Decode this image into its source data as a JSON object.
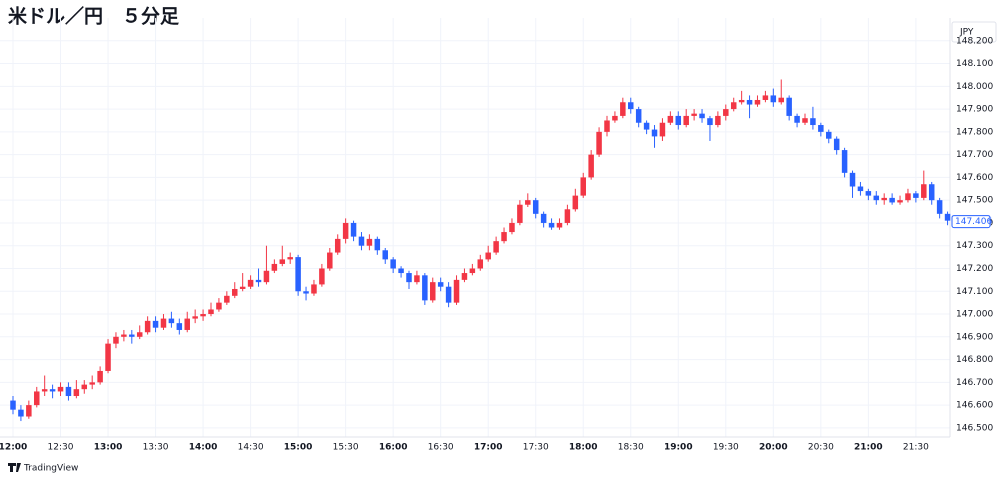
{
  "chart_data": {
    "type": "candlestick",
    "title": "米ドル／円　５分足",
    "currency": "JPY",
    "brand": "TradingView",
    "up_color": "#f23645",
    "down_color": "#2962ff",
    "grid": true,
    "last_price": {
      "value": 147.406,
      "label": "147.406"
    },
    "ylim": [
      146.46,
      148.3
    ],
    "yticks": [
      {
        "value": 146.5,
        "label": "146.500"
      },
      {
        "value": 146.6,
        "label": "146.600"
      },
      {
        "value": 146.7,
        "label": "146.700"
      },
      {
        "value": 146.8,
        "label": "146.800"
      },
      {
        "value": 146.9,
        "label": "146.900"
      },
      {
        "value": 147.0,
        "label": "147.000"
      },
      {
        "value": 147.1,
        "label": "147.100"
      },
      {
        "value": 147.2,
        "label": "147.200"
      },
      {
        "value": 147.3,
        "label": "147.300"
      },
      {
        "value": 147.4,
        "label": "147.400"
      },
      {
        "value": 147.5,
        "label": "147.500"
      },
      {
        "value": 147.6,
        "label": "147.600"
      },
      {
        "value": 147.7,
        "label": "147.700"
      },
      {
        "value": 147.8,
        "label": "147.800"
      },
      {
        "value": 147.9,
        "label": "147.900"
      },
      {
        "value": 148.0,
        "label": "148.000"
      },
      {
        "value": 148.1,
        "label": "148.100"
      },
      {
        "value": 148.2,
        "label": "148.200"
      }
    ],
    "categories": [
      "12:00",
      null,
      null,
      null,
      null,
      null,
      "12:30",
      null,
      null,
      null,
      null,
      null,
      "13:00",
      null,
      null,
      null,
      null,
      null,
      "13:30",
      null,
      null,
      null,
      null,
      null,
      "14:00",
      null,
      null,
      null,
      null,
      null,
      "14:30",
      null,
      null,
      null,
      null,
      null,
      "15:00",
      null,
      null,
      null,
      null,
      null,
      "15:30",
      null,
      null,
      null,
      null,
      null,
      "16:00",
      null,
      null,
      null,
      null,
      null,
      "16:30",
      null,
      null,
      null,
      null,
      null,
      "17:00",
      null,
      null,
      null,
      null,
      null,
      "17:30",
      null,
      null,
      null,
      null,
      null,
      "18:00",
      null,
      null,
      null,
      null,
      null,
      "18:30",
      null,
      null,
      null,
      null,
      null,
      "19:00",
      null,
      null,
      null,
      null,
      null,
      "19:30",
      null,
      null,
      null,
      null,
      null,
      "20:00",
      null,
      null,
      null,
      null,
      null,
      "20:30",
      null,
      null,
      null,
      null,
      null,
      "21:00",
      null,
      null,
      null,
      null,
      null,
      "21:30",
      null,
      null,
      null,
      null
    ],
    "open": [
      146.62,
      146.58,
      146.55,
      146.6,
      146.66,
      146.67,
      146.66,
      146.68,
      146.64,
      146.67,
      146.69,
      146.7,
      146.75,
      146.87,
      146.9,
      146.91,
      146.9,
      146.92,
      146.97,
      146.94,
      146.98,
      146.96,
      146.93,
      146.98,
      146.99,
      147.0,
      147.02,
      147.05,
      147.08,
      147.11,
      147.12,
      147.15,
      147.14,
      147.19,
      147.22,
      147.24,
      147.25,
      147.1,
      147.09,
      147.13,
      147.2,
      147.27,
      147.33,
      147.4,
      147.34,
      147.3,
      147.33,
      147.28,
      147.24,
      147.2,
      147.18,
      147.14,
      147.17,
      147.06,
      147.14,
      147.12,
      147.05,
      147.15,
      147.18,
      147.2,
      147.24,
      147.27,
      147.32,
      147.36,
      147.4,
      147.48,
      147.5,
      147.44,
      147.4,
      147.38,
      147.4,
      147.46,
      147.52,
      147.6,
      147.7,
      147.8,
      147.85,
      147.87,
      147.93,
      147.9,
      147.84,
      147.81,
      147.78,
      147.84,
      147.87,
      147.83,
      147.87,
      147.88,
      147.86,
      147.83,
      147.87,
      147.9,
      147.93,
      147.94,
      147.92,
      147.94,
      147.96,
      147.93,
      147.95,
      147.87,
      147.84,
      147.86,
      147.83,
      147.8,
      147.77,
      147.72,
      147.62,
      147.56,
      147.54,
      147.52,
      147.5,
      147.51,
      147.49,
      147.5,
      147.53,
      147.51,
      147.57,
      147.5,
      147.44
    ],
    "high": [
      146.64,
      146.6,
      146.62,
      146.68,
      146.73,
      146.69,
      146.7,
      146.7,
      146.71,
      146.71,
      146.73,
      146.77,
      146.89,
      146.92,
      146.93,
      146.93,
      146.95,
      146.99,
      146.99,
      147.0,
      147.01,
      146.98,
      147.01,
      147.02,
      147.02,
      147.05,
      147.07,
      147.1,
      147.14,
      147.18,
      147.17,
      147.2,
      147.3,
      147.24,
      147.3,
      147.27,
      147.26,
      147.12,
      147.15,
      147.22,
      147.29,
      147.35,
      147.42,
      147.41,
      147.36,
      147.35,
      147.34,
      147.29,
      147.25,
      147.21,
      147.19,
      147.19,
      147.18,
      147.16,
      147.16,
      147.14,
      147.17,
      147.2,
      147.22,
      147.26,
      147.3,
      147.34,
      147.38,
      147.42,
      147.5,
      147.53,
      147.51,
      147.45,
      147.42,
      147.42,
      147.48,
      147.55,
      147.62,
      147.72,
      147.82,
      147.87,
      147.89,
      147.95,
      147.95,
      147.91,
      147.85,
      147.83,
      147.86,
      147.89,
      147.89,
      147.9,
      147.9,
      147.9,
      147.87,
      147.89,
      147.92,
      147.95,
      147.98,
      147.96,
      147.96,
      147.98,
      147.99,
      148.03,
      147.96,
      147.88,
      147.88,
      147.91,
      147.84,
      147.81,
      147.78,
      147.73,
      147.63,
      147.58,
      147.55,
      147.54,
      147.53,
      147.53,
      147.52,
      147.55,
      147.54,
      147.63,
      147.58,
      147.51,
      147.45
    ],
    "low": [
      146.56,
      146.53,
      146.54,
      146.59,
      146.64,
      146.63,
      146.64,
      146.62,
      146.63,
      146.65,
      146.67,
      146.69,
      146.74,
      146.85,
      146.88,
      146.87,
      146.89,
      146.91,
      146.92,
      146.93,
      146.94,
      146.91,
      146.92,
      146.96,
      146.97,
      146.99,
      147.01,
      147.04,
      147.07,
      147.1,
      147.11,
      147.12,
      147.13,
      147.18,
      147.21,
      147.22,
      147.08,
      147.06,
      147.08,
      147.12,
      147.19,
      147.26,
      147.31,
      147.32,
      147.28,
      147.28,
      147.26,
      147.22,
      147.18,
      147.16,
      147.11,
      147.13,
      147.04,
      147.05,
      147.1,
      147.03,
      147.04,
      147.14,
      147.17,
      147.19,
      147.23,
      147.26,
      147.31,
      147.35,
      147.39,
      147.47,
      147.42,
      147.38,
      147.37,
      147.37,
      147.39,
      147.45,
      147.51,
      147.59,
      147.69,
      147.78,
      147.84,
      147.86,
      147.88,
      147.82,
      147.79,
      147.73,
      147.76,
      147.83,
      147.81,
      147.82,
      147.85,
      147.84,
      147.76,
      147.82,
      147.85,
      147.89,
      147.92,
      147.86,
      147.91,
      147.93,
      147.91,
      147.92,
      147.85,
      147.82,
      147.83,
      147.81,
      147.78,
      147.75,
      147.7,
      147.6,
      147.51,
      147.52,
      147.5,
      147.48,
      147.48,
      147.48,
      147.48,
      147.49,
      147.49,
      147.5,
      147.48,
      147.42,
      147.39
    ],
    "close": [
      146.58,
      146.55,
      146.6,
      146.66,
      146.67,
      146.66,
      146.68,
      146.64,
      146.67,
      146.69,
      146.7,
      146.75,
      146.87,
      146.9,
      146.91,
      146.9,
      146.92,
      146.97,
      146.94,
      146.98,
      146.96,
      146.93,
      146.98,
      146.99,
      147.0,
      147.02,
      147.05,
      147.08,
      147.11,
      147.12,
      147.15,
      147.14,
      147.19,
      147.22,
      147.24,
      147.25,
      147.1,
      147.09,
      147.13,
      147.2,
      147.27,
      147.33,
      147.4,
      147.34,
      147.3,
      147.33,
      147.28,
      147.24,
      147.2,
      147.18,
      147.14,
      147.17,
      147.06,
      147.14,
      147.12,
      147.05,
      147.15,
      147.18,
      147.2,
      147.24,
      147.27,
      147.32,
      147.36,
      147.4,
      147.48,
      147.5,
      147.44,
      147.4,
      147.38,
      147.4,
      147.46,
      147.52,
      147.6,
      147.7,
      147.8,
      147.85,
      147.87,
      147.93,
      147.9,
      147.84,
      147.81,
      147.78,
      147.84,
      147.87,
      147.83,
      147.87,
      147.88,
      147.86,
      147.83,
      147.87,
      147.9,
      147.93,
      147.94,
      147.92,
      147.94,
      147.96,
      147.93,
      147.95,
      147.87,
      147.84,
      147.86,
      147.83,
      147.8,
      147.77,
      147.72,
      147.62,
      147.56,
      147.54,
      147.52,
      147.5,
      147.51,
      147.49,
      147.5,
      147.53,
      147.51,
      147.57,
      147.5,
      147.44,
      147.41
    ]
  }
}
